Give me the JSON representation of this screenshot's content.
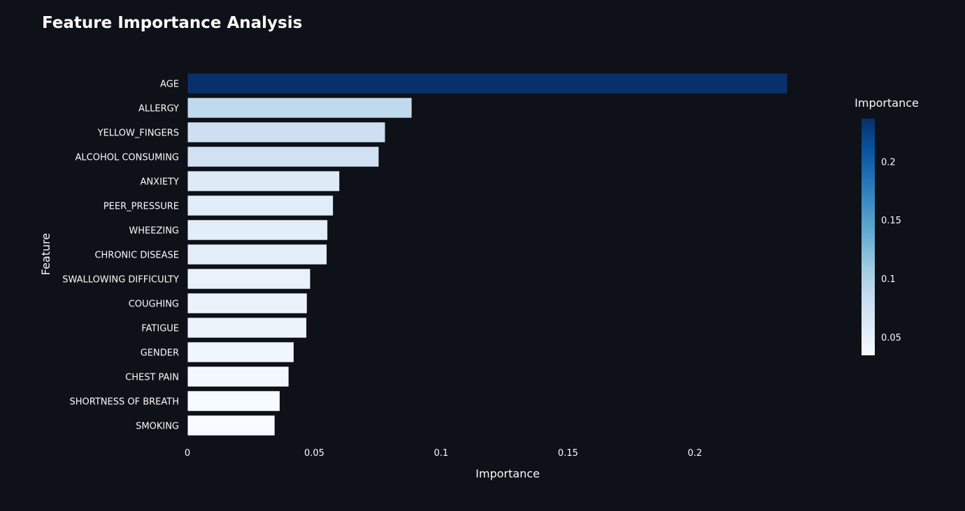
{
  "chart_data": {
    "type": "bar",
    "orientation": "horizontal",
    "title": "Feature Importance Analysis",
    "xlabel": "Importance",
    "ylabel": "Feature",
    "categories": [
      "AGE",
      "ALLERGY",
      "YELLOW_FINGERS",
      "ALCOHOL CONSUMING",
      "ANXIETY",
      "PEER_PRESSURE",
      "WHEEZING",
      "CHRONIC DISEASE",
      "SWALLOWING DIFFICULTY",
      "COUGHING",
      "FATIGUE",
      "GENDER",
      "CHEST PAIN",
      "SHORTNESS OF BREATH",
      "SMOKING"
    ],
    "values": [
      0.2365,
      0.0885,
      0.078,
      0.0755,
      0.06,
      0.0575,
      0.0553,
      0.055,
      0.0485,
      0.0472,
      0.047,
      0.042,
      0.04,
      0.0365,
      0.0345
    ],
    "xlim": [
      0,
      0.245
    ],
    "xticks": [
      0,
      0.05,
      0.1,
      0.15,
      0.2
    ],
    "xtick_labels": [
      "0",
      "0.05",
      "0.1",
      "0.15",
      "0.2"
    ],
    "grid": false,
    "colorbar": {
      "title": "Importance",
      "range": [
        0.0345,
        0.2365
      ],
      "ticks": [
        0.05,
        0.1,
        0.15,
        0.2
      ],
      "tick_labels": [
        "0.05",
        "0.1",
        "0.15",
        "0.2"
      ],
      "colorscale": "Blues",
      "colors": [
        "#f7fbff",
        "#deebf7",
        "#c6dbef",
        "#9ecae1",
        "#6baed6",
        "#4292c6",
        "#2171b5",
        "#08519c",
        "#08306b"
      ]
    },
    "colors": {
      "background": "#0e1117",
      "text": "#fafafa",
      "bar_outline": "#0e1117"
    }
  }
}
